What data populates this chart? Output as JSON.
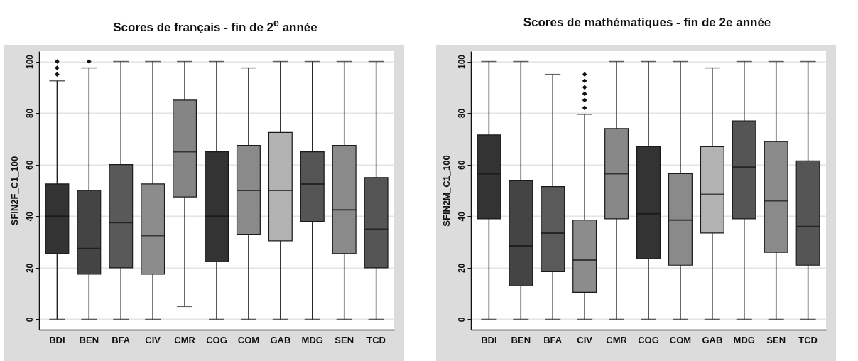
{
  "chart_data": [
    {
      "type": "box",
      "title": "Scores de français - fin de 2$^{e}$ année",
      "ylabel": "SFIN2F_C1_100",
      "categories": [
        "BDI",
        "BEN",
        "BFA",
        "CIV",
        "CMR",
        "COG",
        "COM",
        "GAB",
        "MDG",
        "SEN",
        "TCD"
      ],
      "boxes": [
        {
          "low": 0,
          "q1": 25.5,
          "median": 40,
          "q3": 52.5,
          "high": 92.5,
          "outliers": [
            95,
            97.5,
            100
          ]
        },
        {
          "low": 0,
          "q1": 17.5,
          "median": 27.5,
          "q3": 50,
          "high": 97.5,
          "outliers": [
            100
          ]
        },
        {
          "low": 0,
          "q1": 20,
          "median": 37.5,
          "q3": 60,
          "high": 100
        },
        {
          "low": 0,
          "q1": 17.5,
          "median": 32.5,
          "q3": 52.5,
          "high": 100
        },
        {
          "low": 5,
          "q1": 47.5,
          "median": 65,
          "q3": 85,
          "high": 100
        },
        {
          "low": 0,
          "q1": 22.5,
          "median": 40,
          "q3": 65,
          "high": 100
        },
        {
          "low": 0,
          "q1": 33,
          "median": 50,
          "q3": 67.5,
          "high": 97.5
        },
        {
          "low": 0,
          "q1": 30.5,
          "median": 50,
          "q3": 72.5,
          "high": 100
        },
        {
          "low": 0,
          "q1": 38,
          "median": 52.5,
          "q3": 65,
          "high": 100
        },
        {
          "low": 0,
          "q1": 25.5,
          "median": 42.5,
          "q3": 67.5,
          "high": 100
        },
        {
          "low": 0,
          "q1": 20,
          "median": 35,
          "q3": 55,
          "high": 100
        }
      ],
      "colors": [
        "#333333",
        "#444444",
        "#595959",
        "#8c8c8c",
        "#858585",
        "#333333",
        "#8a8a8a",
        "#b3b3b3",
        "#555555",
        "#8a8a8a",
        "#555555"
      ],
      "ylim": [
        -4,
        104
      ],
      "yticks": [
        0,
        20,
        40,
        60,
        80,
        100
      ],
      "grid": "y",
      "marker": "diamond"
    },
    {
      "type": "box",
      "title": "Scores de mathématiques - fin de 2e année",
      "ylabel": "SFIN2M_C1_100",
      "categories": [
        "BDI",
        "BEN",
        "BFA",
        "CIV",
        "CMR",
        "COG",
        "COM",
        "GAB",
        "MDG",
        "SEN",
        "TCD"
      ],
      "boxes": [
        {
          "low": 0,
          "q1": 39,
          "median": 56.5,
          "q3": 71.5,
          "high": 100
        },
        {
          "low": 0,
          "q1": 13,
          "median": 28.5,
          "q3": 54,
          "high": 100
        },
        {
          "low": 0,
          "q1": 18.5,
          "median": 33.5,
          "q3": 51.5,
          "high": 95
        },
        {
          "low": 0,
          "q1": 10.5,
          "median": 23,
          "q3": 38.5,
          "high": 79.5,
          "outliers": [
            82,
            85,
            87.5,
            90,
            92.5,
            95
          ]
        },
        {
          "low": 0,
          "q1": 39,
          "median": 56.5,
          "q3": 74,
          "high": 100
        },
        {
          "low": 0,
          "q1": 23.5,
          "median": 41,
          "q3": 67,
          "high": 100
        },
        {
          "low": 0,
          "q1": 21,
          "median": 38.5,
          "q3": 56.5,
          "high": 100
        },
        {
          "low": 0,
          "q1": 33.5,
          "median": 48.5,
          "q3": 67,
          "high": 97.5
        },
        {
          "low": 0,
          "q1": 39,
          "median": 59,
          "q3": 77,
          "high": 100
        },
        {
          "low": 0,
          "q1": 26,
          "median": 46,
          "q3": 69,
          "high": 100
        },
        {
          "low": 0,
          "q1": 21,
          "median": 36,
          "q3": 61.5,
          "high": 100
        }
      ],
      "colors": [
        "#333333",
        "#444444",
        "#5a5a5a",
        "#8c8c8c",
        "#888888",
        "#333333",
        "#8a8a8a",
        "#b3b3b3",
        "#555555",
        "#8a8a8a",
        "#555555"
      ],
      "ylim": [
        -4,
        104
      ],
      "yticks": [
        0,
        20,
        40,
        60,
        80,
        100
      ],
      "grid": "y",
      "marker": "diamond"
    }
  ]
}
